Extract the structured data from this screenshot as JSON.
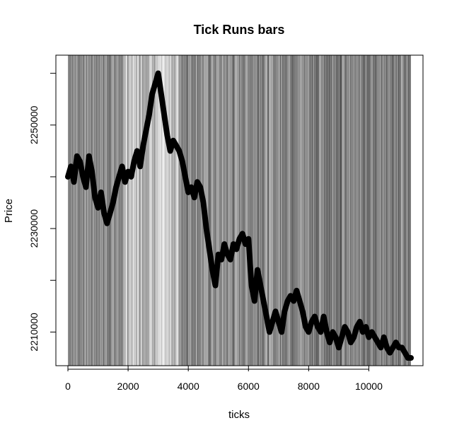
{
  "chart_data": {
    "type": "scatter",
    "title": "Tick Runs bars",
    "xlabel": "ticks",
    "ylabel": "Price",
    "xlim": [
      -400,
      11800
    ],
    "ylim": [
      2203500,
      2263500
    ],
    "x_ticks": [
      0,
      2000,
      4000,
      6000,
      8000,
      10000
    ],
    "y_ticks": [
      2210000,
      2220000,
      2230000,
      2240000,
      2250000,
      2260000
    ],
    "y_tick_labels": [
      "2210000",
      "",
      "2230000",
      "",
      "2250000",
      ""
    ],
    "grid": false,
    "background": "vertical grayscale bands, one per bar",
    "point_color": "#000000",
    "series": [
      {
        "x": [
          0,
          100,
          200,
          300,
          400,
          500,
          600,
          700,
          800,
          900,
          1000,
          1100,
          1200,
          1300,
          1400,
          1500,
          1600,
          1700,
          1800,
          1900,
          2000,
          2100,
          2200,
          2300,
          2400,
          2500,
          2600,
          2700,
          2800,
          2900,
          3000,
          3100,
          3200,
          3300,
          3400,
          3500,
          3600,
          3700,
          3800,
          3900,
          4000,
          4100,
          4200,
          4300,
          4400,
          4500,
          4600,
          4700,
          4800,
          4900,
          5000,
          5100,
          5200,
          5300,
          5400,
          5500,
          5600,
          5700,
          5800,
          5900,
          6000,
          6100,
          6200,
          6300,
          6400,
          6500,
          6600,
          6700,
          6800,
          6900,
          7000,
          7100,
          7200,
          7300,
          7400,
          7500,
          7600,
          7700,
          7800,
          7900,
          8000,
          8100,
          8200,
          8300,
          8400,
          8500,
          8600,
          8700,
          8800,
          8900,
          9000,
          9100,
          9200,
          9300,
          9400,
          9500,
          9600,
          9700,
          9800,
          9900,
          10000,
          10100,
          10200,
          10300,
          10400,
          10500,
          10600,
          10700,
          10800,
          10900,
          11000,
          11100,
          11200,
          11300,
          11400
        ],
        "y": [
          2240000,
          2242000,
          2239000,
          2244000,
          2243000,
          2240000,
          2238000,
          2244000,
          2241000,
          2236000,
          2234000,
          2237000,
          2233000,
          2231000,
          2233000,
          2235000,
          2238000,
          2240000,
          2242000,
          2239000,
          2241000,
          2240000,
          2243000,
          2245000,
          2242000,
          2246000,
          2249000,
          2252000,
          2256000,
          2258000,
          2260000,
          2256000,
          2252000,
          2248000,
          2245000,
          2247000,
          2246000,
          2245000,
          2243000,
          2240000,
          2237000,
          2238000,
          2236000,
          2239000,
          2238000,
          2235000,
          2230000,
          2226000,
          2222000,
          2219000,
          2225000,
          2224000,
          2227000,
          2225000,
          2224000,
          2227000,
          2226000,
          2228000,
          2229000,
          2227000,
          2228000,
          2219000,
          2216000,
          2222000,
          2219000,
          2216000,
          2213000,
          2210000,
          2212000,
          2214000,
          2212000,
          2210000,
          2214000,
          2216000,
          2217000,
          2216000,
          2218000,
          2216000,
          2214000,
          2211000,
          2210000,
          2212000,
          2213000,
          2211000,
          2210000,
          2213000,
          2210000,
          2208000,
          2210000,
          2209000,
          2207000,
          2209000,
          2211000,
          2210000,
          2208000,
          2209000,
          2211000,
          2212000,
          2210000,
          2211000,
          2209000,
          2210000,
          2209000,
          2208000,
          2207000,
          2209000,
          2207000,
          2206000,
          2207000,
          2208000,
          2207000,
          2207000,
          2206000,
          2205000,
          2205000
        ]
      }
    ]
  }
}
